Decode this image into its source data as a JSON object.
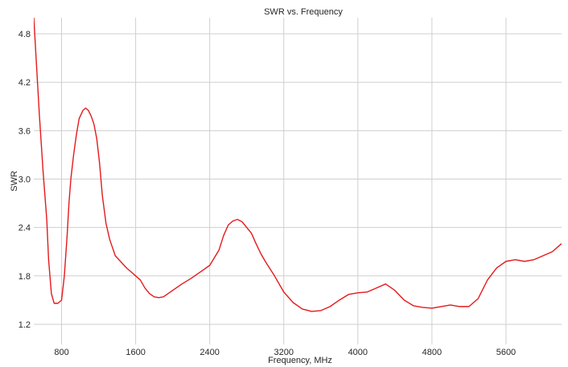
{
  "chart_data": {
    "type": "line",
    "title": "SWR vs. Frequency",
    "xlabel": "Frequency, MHz",
    "ylabel": "SWR",
    "xlim": [
      500,
      6200
    ],
    "ylim": [
      0.95,
      5.0
    ],
    "grid": true,
    "x_ticks": [
      800,
      1600,
      2400,
      3200,
      4000,
      4800,
      5600
    ],
    "y_ticks": [
      1.2,
      1.8,
      2.4,
      3.0,
      3.6,
      4.2,
      4.8
    ],
    "x_tick_labels": [
      "800",
      "1600",
      "2400",
      "3200",
      "4000",
      "4800",
      "5600"
    ],
    "y_tick_labels": [
      "1.2",
      "1.8",
      "2.4",
      "3.0",
      "3.6",
      "4.2",
      "4.8"
    ],
    "colors": {
      "line": "#e41a1c",
      "grid": "#cfcfcf"
    },
    "series": [
      {
        "x": [
          500,
          530,
          560,
          600,
          640,
          660,
          690,
          720,
          760,
          800,
          830,
          860,
          880,
          900,
          930,
          960,
          990,
          1030,
          1060,
          1090,
          1120,
          1150,
          1180,
          1210,
          1240,
          1280,
          1320,
          1350,
          1380,
          1420,
          1460,
          1500,
          1550,
          1600,
          1650,
          1700,
          1750,
          1800,
          1850,
          1900,
          1950,
          2000,
          2100,
          2200,
          2300,
          2400,
          2500,
          2550,
          2600,
          2650,
          2700,
          2750,
          2800,
          2850,
          2900,
          2950,
          3000,
          3100,
          3200,
          3300,
          3400,
          3500,
          3600,
          3700,
          3800,
          3900,
          4000,
          4100,
          4200,
          4300,
          4400,
          4500,
          4600,
          4700,
          4800,
          4900,
          5000,
          5100,
          5200,
          5300,
          5400,
          5500,
          5600,
          5700,
          5800,
          5900,
          6000,
          6100,
          6200
        ],
        "values": [
          5.0,
          4.4,
          3.8,
          3.1,
          2.5,
          2.0,
          1.58,
          1.46,
          1.46,
          1.5,
          1.8,
          2.3,
          2.7,
          3.0,
          3.3,
          3.55,
          3.75,
          3.85,
          3.88,
          3.85,
          3.78,
          3.68,
          3.5,
          3.2,
          2.8,
          2.45,
          2.25,
          2.15,
          2.05,
          2.0,
          1.95,
          1.9,
          1.85,
          1.8,
          1.75,
          1.65,
          1.58,
          1.54,
          1.53,
          1.54,
          1.58,
          1.62,
          1.7,
          1.77,
          1.85,
          1.93,
          2.12,
          2.3,
          2.43,
          2.48,
          2.5,
          2.47,
          2.4,
          2.33,
          2.2,
          2.08,
          1.98,
          1.8,
          1.6,
          1.47,
          1.39,
          1.36,
          1.37,
          1.42,
          1.5,
          1.57,
          1.59,
          1.6,
          1.65,
          1.7,
          1.62,
          1.5,
          1.43,
          1.41,
          1.4,
          1.42,
          1.44,
          1.42,
          1.42,
          1.52,
          1.75,
          1.9,
          1.98,
          2.0,
          1.98,
          2.0,
          2.05,
          2.1,
          2.2
        ]
      }
    ]
  }
}
